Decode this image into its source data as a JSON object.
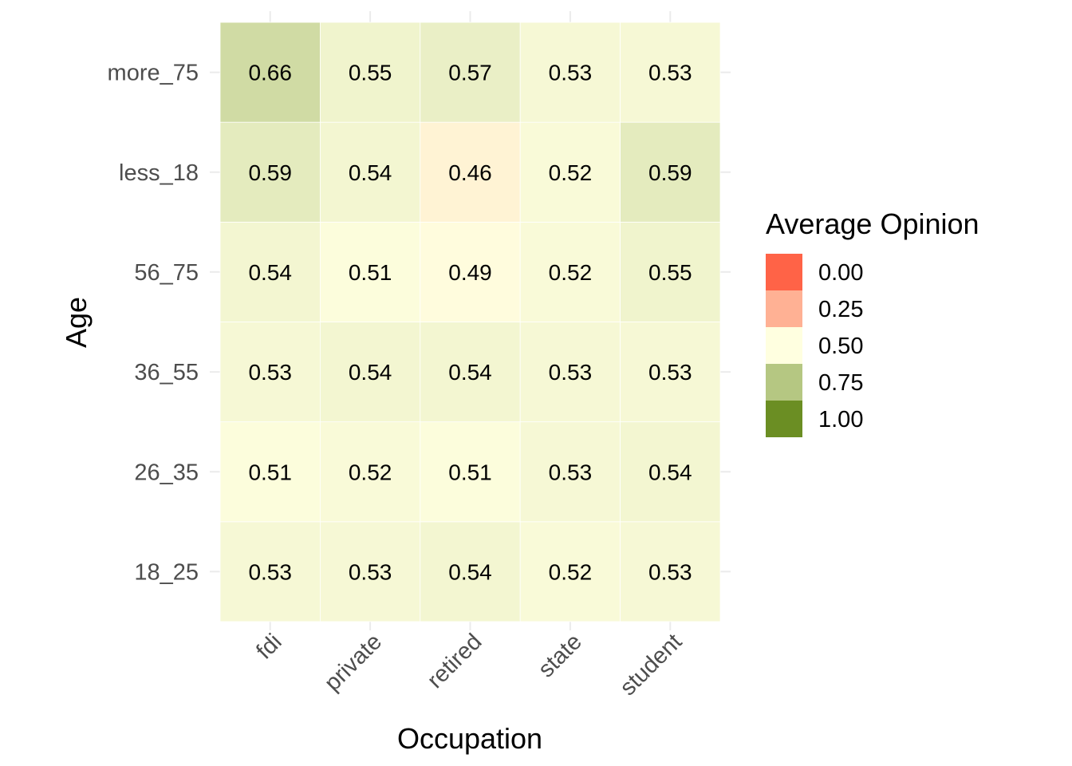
{
  "chart_data": {
    "type": "heatmap",
    "x_categories": [
      "fdi",
      "private",
      "retired",
      "state",
      "student"
    ],
    "y_categories": [
      "18_25",
      "26_35",
      "36_55",
      "56_75",
      "less_18",
      "more_75"
    ],
    "values": [
      [
        0.53,
        0.53,
        0.54,
        0.52,
        0.53
      ],
      [
        0.51,
        0.52,
        0.51,
        0.53,
        0.54
      ],
      [
        0.53,
        0.54,
        0.54,
        0.53,
        0.53
      ],
      [
        0.54,
        0.51,
        0.49,
        0.52,
        0.55
      ],
      [
        0.59,
        0.54,
        0.46,
        0.52,
        0.59
      ],
      [
        0.66,
        0.55,
        0.57,
        0.53,
        0.53
      ]
    ],
    "value_labels": [
      [
        "0.53",
        "0.53",
        "0.54",
        "0.52",
        "0.53"
      ],
      [
        "0.51",
        "0.52",
        "0.51",
        "0.53",
        "0.54"
      ],
      [
        "0.53",
        "0.54",
        "0.54",
        "0.53",
        "0.53"
      ],
      [
        "0.54",
        "0.51",
        "0.49",
        "0.52",
        "0.55"
      ],
      [
        "0.59",
        "0.54",
        "0.46",
        "0.52",
        "0.59"
      ],
      [
        "0.66",
        "0.55",
        "0.57",
        "0.53",
        "0.53"
      ]
    ],
    "xlabel": "Occupation",
    "ylabel": "Age",
    "grid": true,
    "color_scale": {
      "limits": [
        0,
        1
      ],
      "low": "#ff6347",
      "mid": "#ffffe0",
      "high": "#6b8e23",
      "midpoint": 0.5
    },
    "legend": {
      "title": "Average Opinion",
      "position": "right",
      "breaks": [
        0,
        0.25,
        0.5,
        0.75,
        1
      ],
      "labels": [
        "0.00",
        "0.25",
        "0.50",
        "0.75",
        "1.00"
      ]
    }
  }
}
